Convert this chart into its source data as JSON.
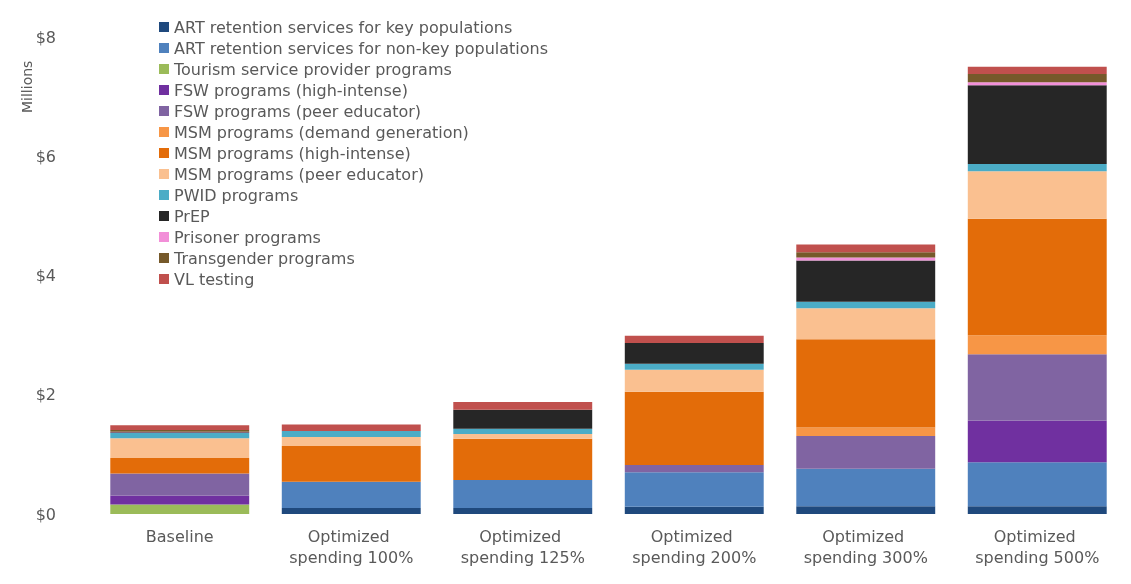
{
  "chart_data": {
    "type": "bar",
    "stacked": true,
    "ylabel": "Millions",
    "categories": [
      "Baseline",
      "Optimized spending 100%",
      "Optimized spending 125%",
      "Optimized spending 200%",
      "Optimized spending 300%",
      "Optimized spending 500%"
    ],
    "ylim": [
      0,
      8
    ],
    "yticks": [
      {
        "value": 0,
        "label": "$0"
      },
      {
        "value": 2,
        "label": "$2"
      },
      {
        "value": 4,
        "label": "$4"
      },
      {
        "value": 6,
        "label": "$6"
      },
      {
        "value": 8,
        "label": "$8"
      }
    ],
    "grid": false,
    "legend": "top left",
    "series": [
      {
        "name": "ART retention services for key populations",
        "color": "#1f497d",
        "values": [
          null,
          0.1,
          0.1,
          0.12,
          0.13,
          0.13
        ]
      },
      {
        "name": "ART retention services for non-key populations",
        "color": "#4f81bd",
        "values": [
          0,
          0.44,
          0.47,
          0.58,
          0.63,
          0.74
        ]
      },
      {
        "name": "Tourism service provider programs",
        "color": "#9bbb59",
        "values": [
          0.16,
          0,
          0,
          0,
          0,
          0
        ]
      },
      {
        "name": "FSW programs (high-intense)",
        "color": "#7030a0",
        "values": [
          0.15,
          0,
          0,
          0,
          0,
          0.7
        ]
      },
      {
        "name": "FSW programs (peer educator)",
        "color": "#8064a2",
        "values": [
          0.37,
          0,
          0,
          0.12,
          0.55,
          1.11
        ]
      },
      {
        "name": "MSM programs (demand generation)",
        "color": "#f79646",
        "values": [
          0,
          0,
          0,
          0,
          0.14,
          0.32
        ]
      },
      {
        "name": "MSM programs (high-intense)",
        "color": "#e36c09",
        "values": [
          0.26,
          0.6,
          0.69,
          1.23,
          1.48,
          1.95
        ]
      },
      {
        "name": "MSM programs (peer educator)",
        "color": "#fac090",
        "values": [
          0.33,
          0.15,
          0.08,
          0.37,
          0.52,
          0.8
        ]
      },
      {
        "name": "PWID programs",
        "color": "#4bacc6",
        "values": [
          0.09,
          0.1,
          0.09,
          0.1,
          0.11,
          0.12
        ]
      },
      {
        "name": "PrEP",
        "color": "#262626",
        "values": [
          0.01,
          0,
          0.32,
          0.35,
          0.69,
          1.32
        ]
      },
      {
        "name": "Prisoner programs",
        "color": "#f28fd8",
        "values": [
          0.01,
          0,
          0,
          0,
          0.05,
          0.05
        ]
      },
      {
        "name": "Transgender programs",
        "color": "#76592a",
        "values": [
          0.03,
          0,
          0,
          0,
          0.09,
          0.14
        ]
      },
      {
        "name": "VL testing",
        "color": "#c0504d",
        "values": [
          0.08,
          0.11,
          0.13,
          0.12,
          0.13,
          0.12
        ]
      }
    ]
  }
}
